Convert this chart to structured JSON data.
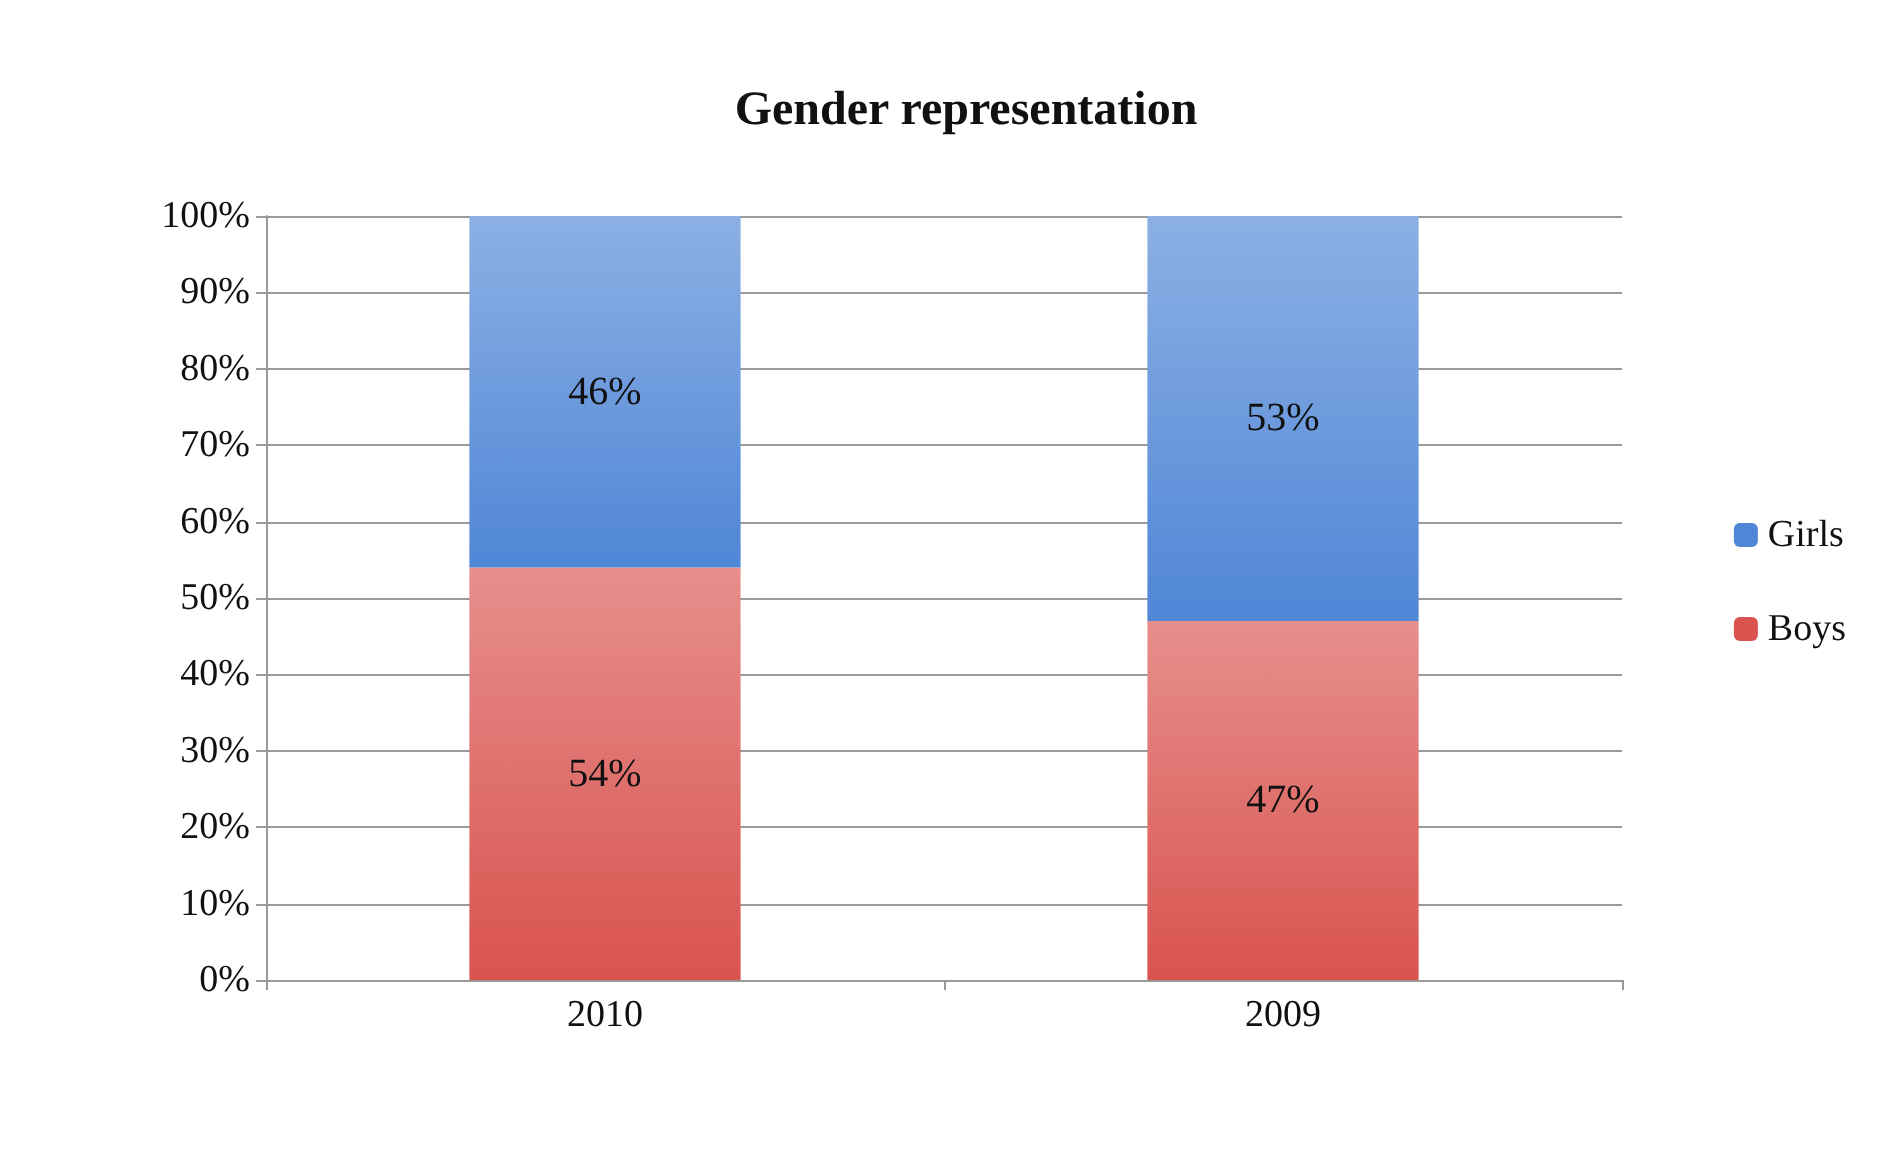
{
  "chart_data": {
    "type": "bar",
    "title": "Gender representation",
    "stacked": true,
    "categories": [
      "2010",
      "2009"
    ],
    "series": [
      {
        "name": "Boys",
        "color": "#d9534f",
        "values": [
          54,
          47
        ],
        "value_labels": [
          "54%",
          "47%"
        ]
      },
      {
        "name": "Girls",
        "color": "#4f86d6",
        "values": [
          46,
          53
        ],
        "value_labels": [
          "46%",
          "53%"
        ]
      }
    ],
    "ylim": [
      0,
      100
    ],
    "yticks": [
      {
        "value": 0,
        "label": "0%"
      },
      {
        "value": 10,
        "label": "10%"
      },
      {
        "value": 20,
        "label": "20%"
      },
      {
        "value": 30,
        "label": "30%"
      },
      {
        "value": 40,
        "label": "40%"
      },
      {
        "value": 50,
        "label": "50%"
      },
      {
        "value": 60,
        "label": "60%"
      },
      {
        "value": 70,
        "label": "70%"
      },
      {
        "value": 80,
        "label": "80%"
      },
      {
        "value": 90,
        "label": "90%"
      },
      {
        "value": 100,
        "label": "100%"
      }
    ],
    "grid": "y",
    "legend": "right"
  }
}
